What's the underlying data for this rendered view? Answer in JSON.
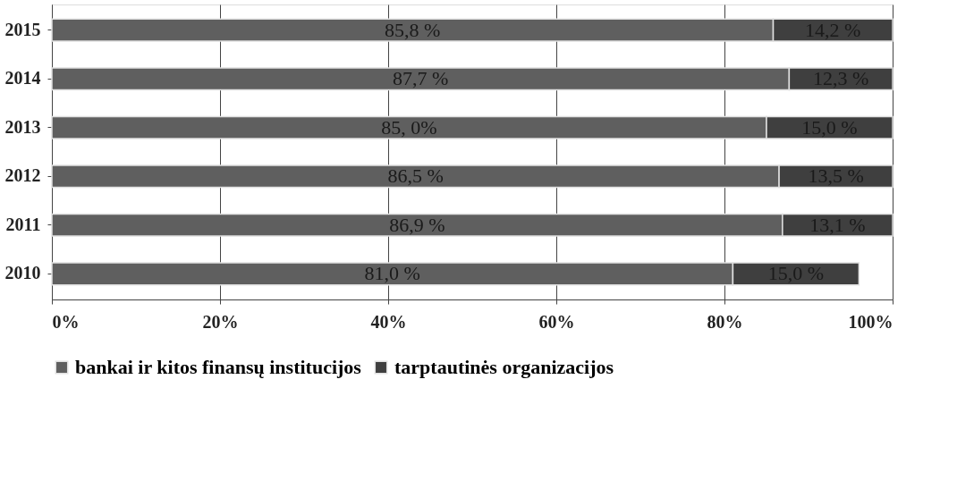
{
  "chart_data": {
    "type": "bar",
    "orientation": "horizontal",
    "stacked": true,
    "categories": [
      "2015",
      "2014",
      "2013",
      "2012",
      "2011",
      "2010"
    ],
    "series": [
      {
        "name": "bankai ir kitos finansų institucijos",
        "color": "#5f5f5f",
        "values": [
          85.8,
          87.7,
          85.0,
          86.5,
          86.9,
          81.0
        ],
        "value_labels": [
          "85,8 %",
          "87,7 %",
          "85, 0%",
          "86,5 %",
          "86,9 %",
          "81,0 %"
        ]
      },
      {
        "name": "tarptautinės organizacijos",
        "color": "#3f3f3f",
        "values": [
          14.2,
          12.3,
          15.0,
          13.5,
          13.1,
          15.0
        ],
        "value_labels": [
          "14,2 %",
          "12,3 %",
          "15,0 %",
          "13,5 %",
          "13,1 %",
          "15,0 %"
        ]
      }
    ],
    "xlim": [
      0,
      100
    ],
    "xticks": [
      {
        "value": 0,
        "label": "0%"
      },
      {
        "value": 20,
        "label": "20%"
      },
      {
        "value": 40,
        "label": "40%"
      },
      {
        "value": 60,
        "label": "60%"
      },
      {
        "value": 80,
        "label": "80%"
      },
      {
        "value": 100,
        "label": "100%"
      }
    ],
    "grid": "x",
    "legend": "bottom"
  }
}
